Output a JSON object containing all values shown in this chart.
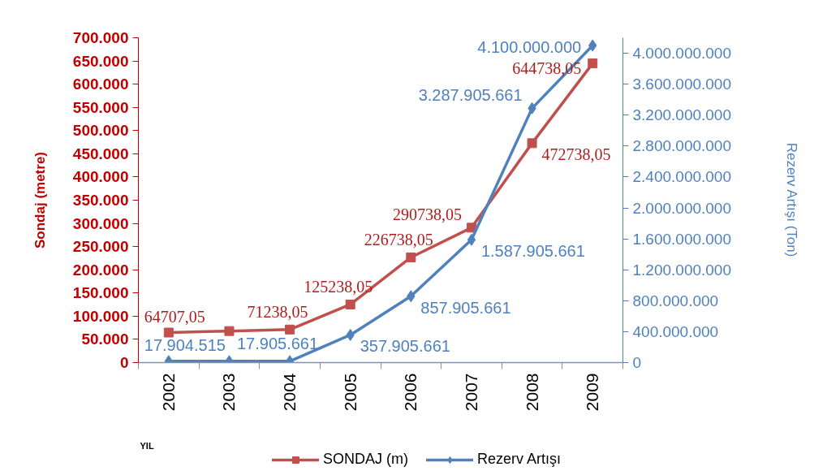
{
  "chart_data": {
    "type": "line",
    "xlabel": "YIL",
    "ylabel": "Sondaj (metre)",
    "y2label": "Rezerv Artışı (Ton)",
    "categories": [
      "2002",
      "2003",
      "2004",
      "2005",
      "2006",
      "2007",
      "2008",
      "2009"
    ],
    "series": [
      {
        "name": "SONDAJ (m)",
        "color": "#c0504d",
        "marker": "square",
        "values": [
          64707.05,
          68000,
          71238.05,
          125238.05,
          226738.05,
          290738.05,
          472738.05,
          644738.05
        ],
        "value_labels": [
          "64707,05",
          null,
          "71238,05",
          "125238,05",
          "226738,05",
          "290738,05",
          "472738,05",
          "644738,05"
        ]
      },
      {
        "name": "Rezerv Artışı",
        "color": "#4f81bd",
        "marker": "diamond",
        "axis": "y2",
        "values": [
          17904515,
          18000000,
          17905661,
          357905661,
          857905661,
          1587905661,
          3287905661,
          4100000000
        ],
        "value_labels": [
          "17.904.515",
          null,
          "17.905.661",
          "357.905.661",
          "857.905.661",
          "1.587.905.661",
          "3.287.905.661",
          "4.100.000.000"
        ]
      }
    ],
    "ylim": [
      0,
      700000
    ],
    "yticks": [
      0,
      {
        "value": 50000,
        "label": "50.000"
      },
      {
        "value": 100000,
        "label": "100.000"
      },
      {
        "value": 150000,
        "label": "150.000"
      },
      {
        "value": 200000,
        "label": "200.000"
      },
      {
        "value": 250000,
        "label": "250.000"
      },
      {
        "value": 300000,
        "label": "300.000"
      },
      {
        "value": 350000,
        "label": "350.000"
      },
      {
        "value": 400000,
        "label": "400.000"
      },
      {
        "value": 450000,
        "label": "450.000"
      },
      {
        "value": 500000,
        "label": "500.000"
      },
      {
        "value": 550000,
        "label": "550.000"
      },
      {
        "value": 600000,
        "label": "600.000"
      },
      {
        "value": 650000,
        "label": "650.000"
      },
      {
        "value": 700000,
        "label": "700.000"
      }
    ],
    "y2lim": [
      0,
      4200000000
    ],
    "y2ticks": [
      0,
      {
        "value": 400000000,
        "label": "400.000.000"
      },
      {
        "value": 800000000,
        "label": "800.000.000"
      },
      {
        "value": 1200000000,
        "label": "1.200.000.000"
      },
      {
        "value": 1600000000,
        "label": "1.600.000.000"
      },
      {
        "value": 2000000000,
        "label": "2.000.000.000"
      },
      {
        "value": 2400000000,
        "label": "2.400.000.000"
      },
      {
        "value": 2800000000,
        "label": "2.800.000.000"
      },
      {
        "value": 3200000000,
        "label": "3.200.000.000"
      },
      {
        "value": 3600000000,
        "label": "3.600.000.000"
      },
      {
        "value": 4000000000,
        "label": "4.000.000.000"
      }
    ],
    "grid": false,
    "legend": "bottom"
  }
}
